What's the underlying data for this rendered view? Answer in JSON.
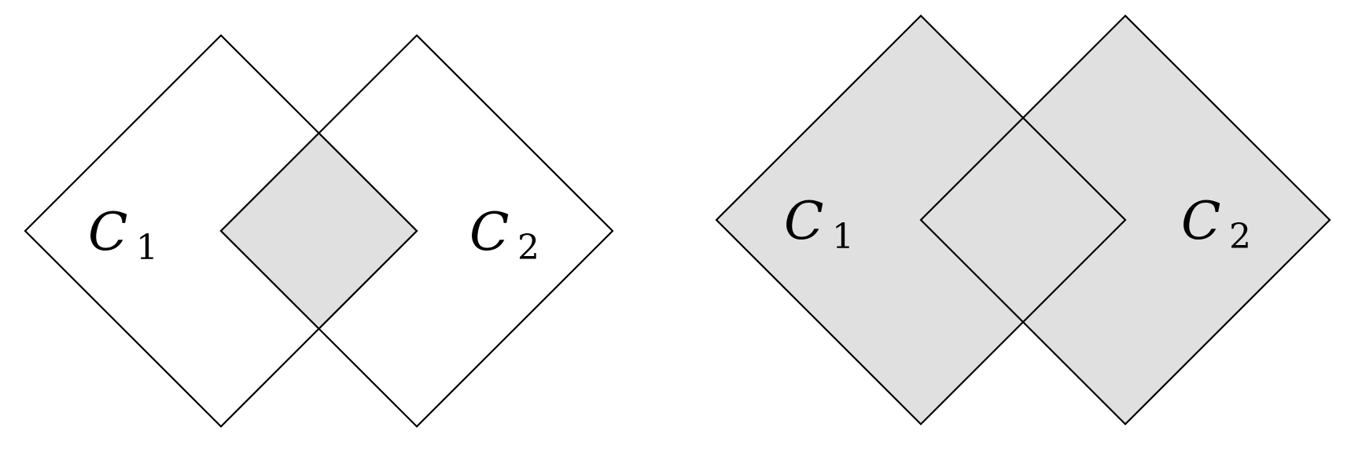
{
  "colors": {
    "background": "#ffffff",
    "stroke": "#000000",
    "shade": "#e0e0e0"
  },
  "left_diagram": {
    "shading": "intersection",
    "square_1": {
      "symbol": "C",
      "subscript": "1"
    },
    "square_2": {
      "symbol": "C",
      "subscript": "2"
    }
  },
  "right_diagram": {
    "shading": "union",
    "square_1": {
      "symbol": "C",
      "subscript": "1"
    },
    "square_2": {
      "symbol": "C",
      "subscript": "2"
    }
  }
}
